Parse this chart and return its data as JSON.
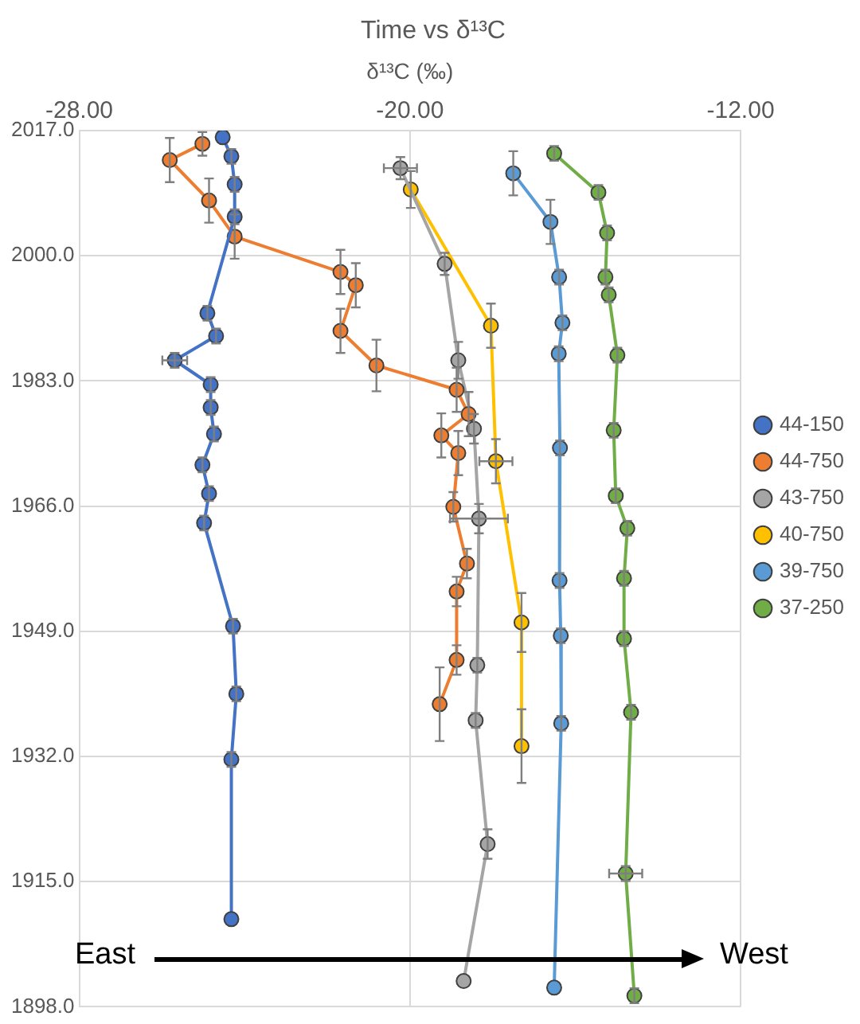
{
  "chart_data": {
    "type": "line",
    "title": "Time vs δ¹³C",
    "xlabel": "δ¹³C (‰)",
    "xlim": [
      -28,
      -12
    ],
    "xticks": [
      {
        "value": -28,
        "label": "-28.00"
      },
      {
        "value": -20,
        "label": "-20.00"
      },
      {
        "value": -12,
        "label": "-12.00"
      }
    ],
    "ylim": [
      1898,
      2017
    ],
    "yticks": [
      {
        "value": 1898,
        "label": "1898.0"
      },
      {
        "value": 1915,
        "label": "1915.0"
      },
      {
        "value": 1932,
        "label": "1932.0"
      },
      {
        "value": 1949,
        "label": "1949.0"
      },
      {
        "value": 1966,
        "label": "1966.0"
      },
      {
        "value": 1983,
        "label": "1983.0"
      },
      {
        "value": 2000,
        "label": "2000.0"
      },
      {
        "value": 2017,
        "label": "2017.0"
      }
    ],
    "grid": true,
    "legend": "right",
    "marker": "circle",
    "line_style": "solid",
    "annotations": [
      "East",
      "West"
    ],
    "series": [
      {
        "name": "44-150",
        "color": "#4472c4",
        "x": [
          -24.53,
          -24.32,
          -24.24,
          -24.24,
          -24.9,
          -24.69,
          -25.69,
          -24.82,
          -24.82,
          -24.74,
          -25.02,
          -24.86,
          -24.98,
          -24.28,
          -24.2,
          -24.32,
          -24.32
        ],
        "values": [
          2016.1,
          2013.5,
          2009.7,
          2005.3,
          1992.2,
          1989.1,
          1985.8,
          1982.5,
          1979.4,
          1975.8,
          1971.6,
          1967.7,
          1963.7,
          1949.7,
          1940.5,
          1931.6,
          1909.9
        ],
        "errors": [
          null,
          1,
          1,
          1,
          1,
          1,
          1,
          1,
          1,
          1,
          1,
          1,
          1,
          1,
          1,
          1,
          null
        ],
        "xerrors": [
          null,
          null,
          null,
          null,
          null,
          null,
          0.3,
          null,
          null,
          null,
          null,
          null,
          null,
          null,
          null,
          null,
          null
        ]
      },
      {
        "name": "44-750",
        "color": "#ed7d31",
        "x": [
          -25.02,
          -25.81,
          -24.86,
          -24.24,
          -21.68,
          -21.31,
          -21.68,
          -20.81,
          -18.87,
          -18.58,
          -19.24,
          -18.83,
          -18.95,
          -18.62,
          -18.87,
          -18.87,
          -19.28
        ],
        "values": [
          2015.2,
          2013,
          2007.5,
          2002.6,
          1997.8,
          1996,
          1989.8,
          1985.1,
          1981.8,
          1978.5,
          1975.6,
          1973.2,
          1965.9,
          1958.2,
          1954.4,
          1945.1,
          1939.1
        ],
        "errors": [
          1.6,
          3,
          3,
          3,
          3,
          3,
          3,
          3.5,
          3,
          3,
          3,
          3,
          2,
          2,
          2,
          2,
          5
        ],
        "xerrors": [
          null,
          null,
          null,
          null,
          null,
          null,
          null,
          null,
          null,
          null,
          null,
          null,
          null,
          null,
          null,
          null,
          null
        ]
      },
      {
        "name": "43-750",
        "color": "#a5a5a5",
        "x": [
          -20.23,
          -19.16,
          -18.83,
          -18.45,
          -18.33,
          -18.37,
          -18.41,
          -18.12,
          -18.7
        ],
        "values": [
          2011.9,
          1998.9,
          1985.8,
          1976.5,
          1964.3,
          1944.4,
          1936.9,
          1920.1,
          1901.5
        ],
        "errors": [
          1.5,
          1.5,
          2.5,
          2,
          2,
          1,
          1,
          2,
          null
        ],
        "xerrors": [
          0.4,
          null,
          null,
          null,
          0.7,
          null,
          null,
          null,
          null
        ]
      },
      {
        "name": "40-750",
        "color": "#ffc000",
        "x": [
          -19.98,
          -18.04,
          -17.92,
          -17.3,
          -17.3
        ],
        "values": [
          2009,
          1990.5,
          1972.1,
          1950.2,
          1933.4
        ],
        "errors": [
          2.5,
          3,
          3,
          4,
          5
        ],
        "xerrors": [
          null,
          null,
          0.4,
          null,
          null
        ]
      },
      {
        "name": "39-750",
        "color": "#5b9bd5",
        "x": [
          -17.5,
          -16.6,
          -16.39,
          -16.31,
          -16.4,
          -16.37,
          -16.38,
          -16.35,
          -16.34,
          -16.51
        ],
        "values": [
          2011.2,
          2004.6,
          1997.1,
          1990.9,
          1986.7,
          1973.9,
          1955.9,
          1948.4,
          1936.5,
          1900.6
        ],
        "errors": [
          3,
          3,
          1,
          1,
          1,
          1,
          1,
          1,
          1,
          null
        ],
        "xerrors": [
          null,
          null,
          null,
          null,
          null,
          null,
          null,
          null,
          null,
          null
        ]
      },
      {
        "name": "37-250",
        "color": "#70ad47",
        "x": [
          -16.51,
          -15.44,
          -15.23,
          -15.27,
          -15.19,
          -14.98,
          -15.07,
          -15.02,
          -14.74,
          -14.82,
          -14.82,
          -14.65,
          -14.78,
          -14.57
        ],
        "values": [
          2013.9,
          2008.6,
          2003.1,
          1997.1,
          1994.7,
          1986.5,
          1976.3,
          1967.4,
          1963,
          1956.2,
          1948,
          1938,
          1916.1,
          1899.5
        ],
        "errors": [
          1,
          1,
          1,
          1,
          1,
          1,
          1,
          1,
          1,
          1,
          1,
          1,
          1,
          1
        ],
        "xerrors": [
          null,
          null,
          null,
          null,
          null,
          null,
          null,
          null,
          null,
          null,
          null,
          null,
          0.4,
          null
        ]
      }
    ]
  }
}
